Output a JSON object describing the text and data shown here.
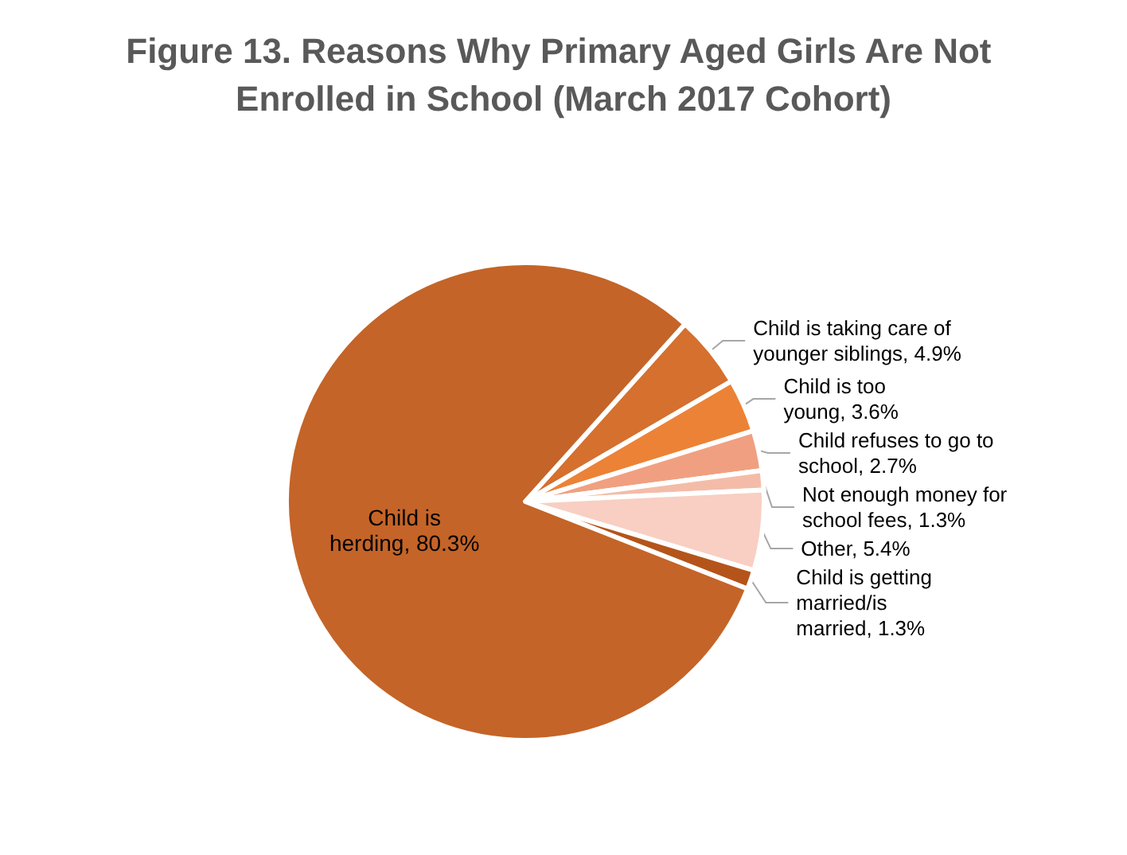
{
  "chart_data": {
    "type": "pie",
    "title": "Figure 13. Reasons Why Primary Aged Girls Are Not Enrolled in School (March 2017 Cohort)",
    "categories": [
      "Child is taking care of younger siblings",
      "Child is too young",
      "Child refuses to go to school",
      "Not enough money for school fees",
      "Other",
      "Child is getting married/is married",
      "Child is herding"
    ],
    "values": [
      4.9,
      3.6,
      2.7,
      1.3,
      5.4,
      1.3,
      80.3
    ],
    "value_labels": [
      "4.9%",
      "3.6%",
      "2.7%",
      "1.3%",
      "5.4%",
      "1.3%",
      "80.3%"
    ],
    "colors": [
      "#d5702e",
      "#ec8236",
      "#f0a080",
      "#f4bca8",
      "#f8cfc2",
      "#b5541a",
      "#c46428"
    ],
    "legend": false
  }
}
